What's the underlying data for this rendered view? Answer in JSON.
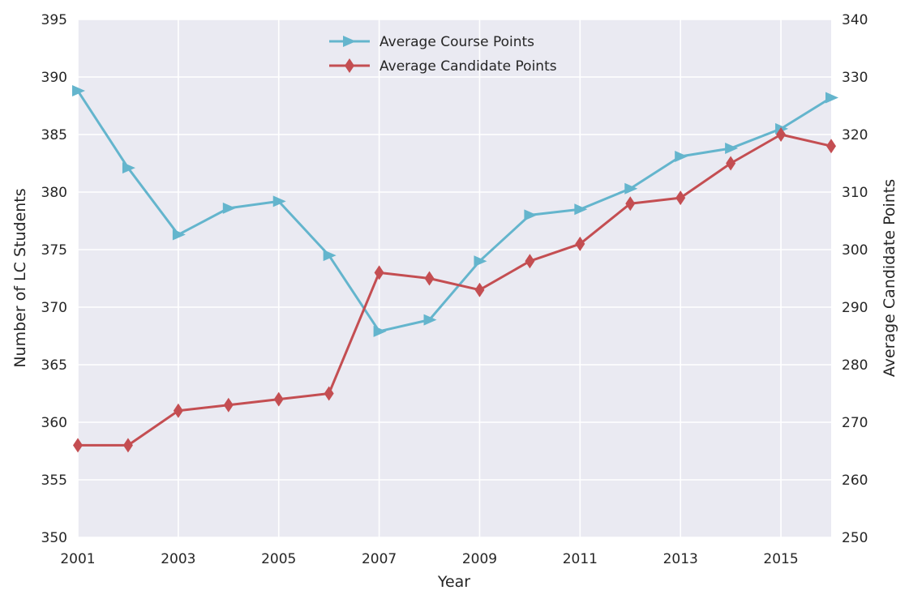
{
  "chart_data": {
    "type": "line",
    "title": "",
    "xlabel": "Year",
    "ylabel_left": "Number of LC Students",
    "ylabel_right": "Average Candidate Points",
    "xlim": [
      2001,
      2016
    ],
    "ylim_left": [
      350,
      395
    ],
    "ylim_right": [
      250,
      340
    ],
    "x_ticks": [
      "2001",
      "2003",
      "2005",
      "2007",
      "2009",
      "2011",
      "2013",
      "2015"
    ],
    "y_left_ticks": [
      "350",
      "355",
      "360",
      "365",
      "370",
      "375",
      "380",
      "385",
      "390",
      "395"
    ],
    "y_right_ticks": [
      "250",
      "260",
      "270",
      "280",
      "290",
      "300",
      "310",
      "320",
      "330",
      "340"
    ],
    "grid": true,
    "legend_position": "top-center",
    "x": [
      2001,
      2002,
      2003,
      2004,
      2005,
      2006,
      2007,
      2008,
      2009,
      2010,
      2011,
      2012,
      2013,
      2014,
      2015,
      2016
    ],
    "series": [
      {
        "name": "Average Course Points",
        "axis": "left",
        "color": "#64b5cd",
        "marker": "triangle-right",
        "values": [
          388.8,
          382.1,
          376.3,
          378.6,
          379.2,
          374.5,
          367.9,
          368.9,
          374.0,
          378.0,
          378.5,
          380.3,
          383.1,
          383.8,
          385.5,
          388.2
        ]
      },
      {
        "name": "Average Candidate Points",
        "axis": "right",
        "color": "#c44e52",
        "marker": "diamond",
        "values": [
          266,
          266,
          272,
          273,
          274,
          275,
          296,
          295,
          293,
          298,
          301,
          308,
          309,
          315,
          320,
          318
        ]
      }
    ]
  }
}
